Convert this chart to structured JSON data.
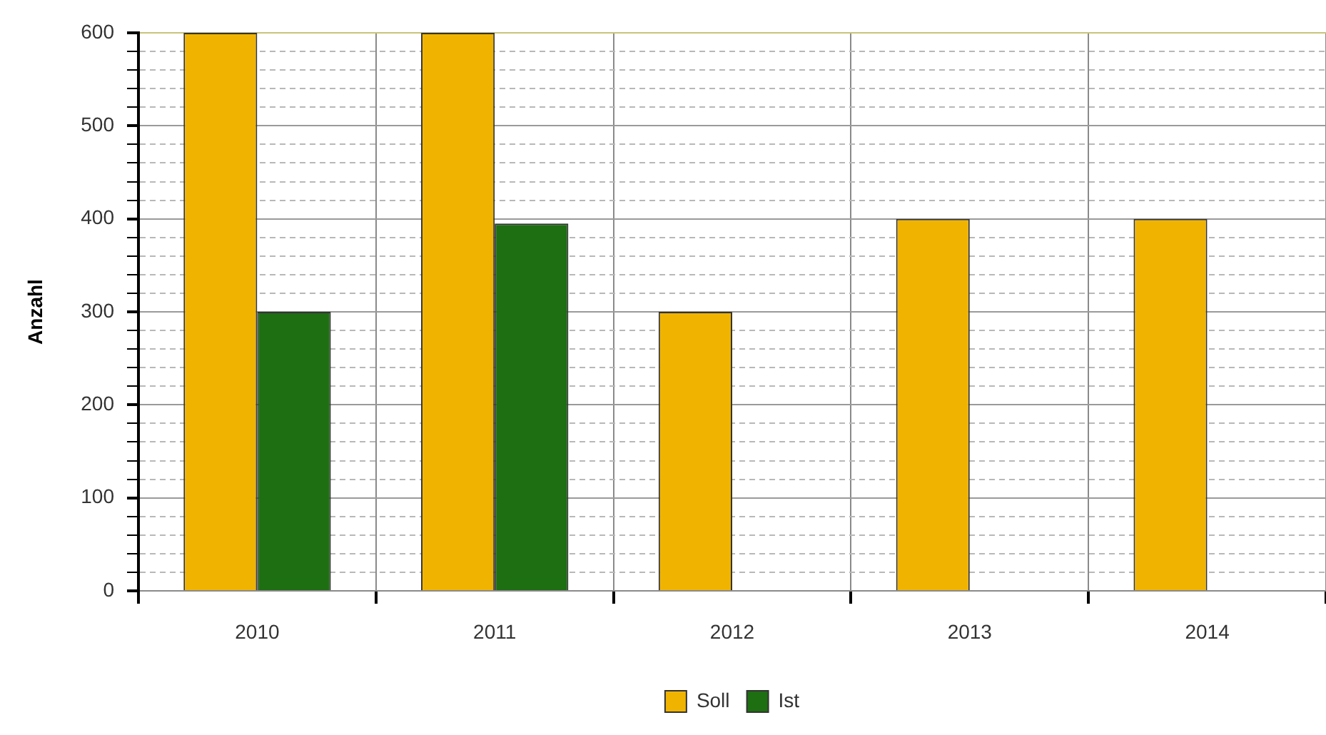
{
  "chart_data": {
    "type": "bar",
    "ylabel": "Anzahl",
    "categories": [
      "2010",
      "2011",
      "2012",
      "2013",
      "2014"
    ],
    "series": [
      {
        "name": "Soll",
        "color": "#f0b400",
        "values": [
          600,
          600,
          300,
          400,
          400
        ]
      },
      {
        "name": "Ist",
        "color": "#1e6e12",
        "values": [
          300,
          395,
          null,
          null,
          null
        ]
      }
    ],
    "ylim": [
      0,
      600
    ],
    "yticks": [
      0,
      {
        "value": 20,
        "label": null
      },
      {
        "value": 40,
        "label": null
      },
      {
        "value": 60,
        "label": null
      },
      {
        "value": 80,
        "label": null
      },
      100,
      {
        "value": 120,
        "label": null
      },
      {
        "value": 140,
        "label": null
      },
      {
        "value": 160,
        "label": null
      },
      {
        "value": 180,
        "label": null
      },
      200,
      {
        "value": 220,
        "label": null
      },
      {
        "value": 240,
        "label": null
      },
      {
        "value": 260,
        "label": null
      },
      {
        "value": 280,
        "label": null
      },
      300,
      {
        "value": 320,
        "label": null
      },
      {
        "value": 340,
        "label": null
      },
      {
        "value": 360,
        "label": null
      },
      {
        "value": 380,
        "label": null
      },
      400,
      {
        "value": 420,
        "label": null
      },
      {
        "value": 440,
        "label": null
      },
      {
        "value": 460,
        "label": null
      },
      {
        "value": 480,
        "label": null
      },
      500,
      {
        "value": 520,
        "label": null
      },
      {
        "value": 540,
        "label": null
      },
      {
        "value": 560,
        "label": null
      },
      {
        "value": 580,
        "label": null
      },
      600
    ],
    "grid": true,
    "legend": "bottom"
  }
}
